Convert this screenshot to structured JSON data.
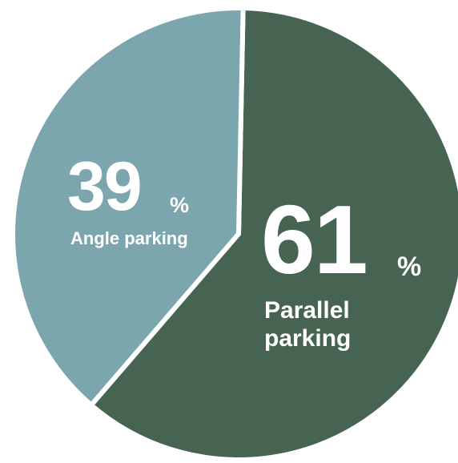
{
  "chart_data": {
    "type": "pie",
    "categories": [
      "Parallel parking",
      "Angle parking"
    ],
    "values": [
      61,
      39
    ],
    "unit": "%",
    "colors": [
      "#476352",
      "#7ba6ae"
    ]
  }
}
